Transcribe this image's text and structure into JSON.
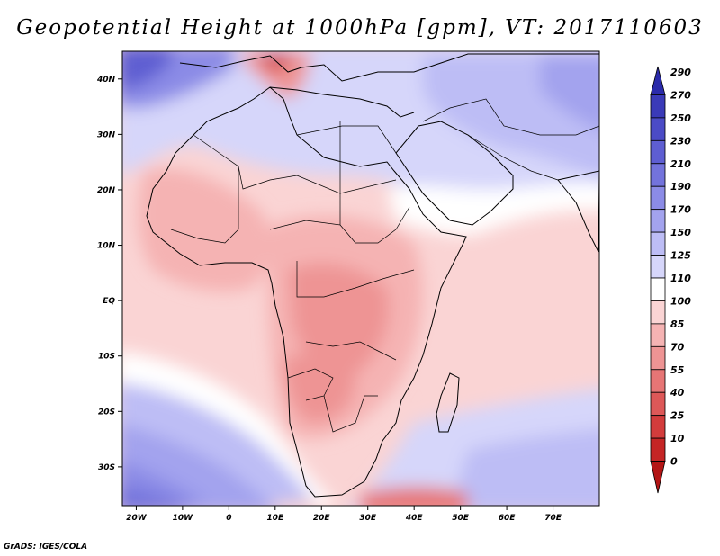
{
  "title": "Geopotential Height at 1000hPa [gpm], VT: 2017110603",
  "footer": "GrADS: IGES/COLA",
  "map": {
    "region": "Africa and Middle East",
    "longitude_labels": [
      "20W",
      "10W",
      "0",
      "10E",
      "20E",
      "30E",
      "40E",
      "50E",
      "60E",
      "70E"
    ],
    "latitude_labels": [
      "40N",
      "30N",
      "20N",
      "10N",
      "EQ",
      "10S",
      "20S",
      "30S"
    ],
    "longitudes": [
      -20,
      -10,
      0,
      10,
      20,
      30,
      40,
      50,
      60,
      70
    ],
    "latitudes": [
      40,
      30,
      20,
      10,
      0,
      -10,
      -20,
      -30
    ],
    "lon_range": [
      -23,
      80
    ],
    "lat_range": [
      -37,
      45
    ]
  },
  "colorbar": {
    "levels": [
      290,
      270,
      250,
      230,
      210,
      190,
      170,
      150,
      125,
      110,
      100,
      85,
      70,
      55,
      40,
      25,
      10,
      0
    ],
    "colors": [
      "#2b2bab",
      "#3a3ab8",
      "#4b4bc6",
      "#5e5ed2",
      "#7373dc",
      "#8b8be6",
      "#a3a3ee",
      "#bdbdf5",
      "#d6d6fa",
      "#ffffff",
      "#fad4d4",
      "#f5b3b3",
      "#ee9494",
      "#e67575",
      "#dd5858",
      "#d33c3c",
      "#c52525",
      "#b31515"
    ]
  }
}
